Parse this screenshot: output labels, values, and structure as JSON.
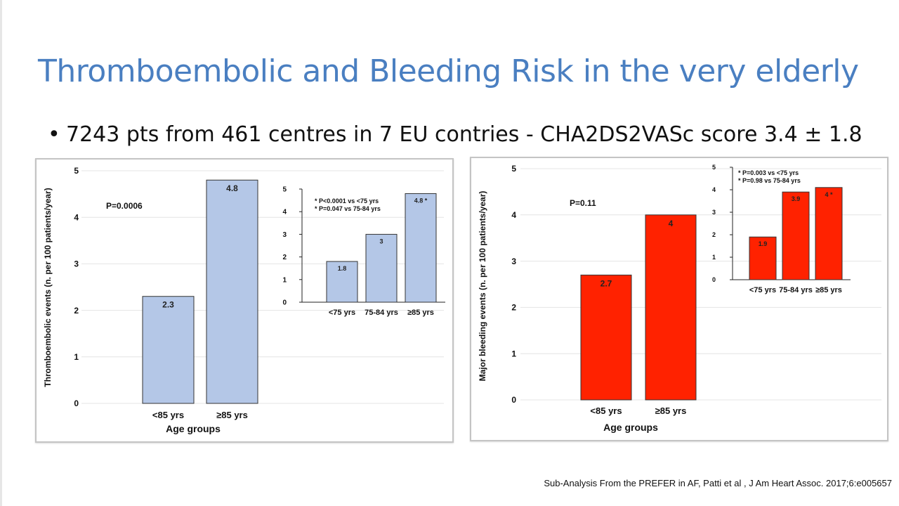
{
  "slide": {
    "title": "Thromboembolic and Bleeding Risk in the very elderly",
    "bullet": "7243 pts from 461 centres in 7 EU contries - CHA2DS2VASc score 3.4 ± 1.8",
    "citation": "Sub-Analysis From the PREFER in AF, Patti et al , J Am Heart Assoc. 2017;6:e005657"
  },
  "colors": {
    "title": "#4a7fc1",
    "blue_bar": "#b4c7e7",
    "red_bar": "#ff2200"
  },
  "chart_data": [
    {
      "type": "bar",
      "categories": [
        "<85 yrs",
        "≥85 yrs"
      ],
      "values": [
        2.3,
        4.8
      ],
      "data_labels": [
        "2.3",
        "4.8"
      ],
      "xlabel": "Age groups",
      "ylabel": "Thromboembolic events (n. per 100 patients/year)",
      "ylim": [
        0,
        5
      ],
      "yticks": [
        "0",
        "1",
        "2",
        "3",
        "4",
        "5"
      ],
      "annotation": "P=0.0006",
      "color": "#b4c7e7"
    },
    {
      "type": "bar",
      "categories": [
        "<75 yrs",
        "75-84 yrs",
        "≥85 yrs"
      ],
      "values": [
        1.8,
        3,
        4.8
      ],
      "data_labels": [
        "1.8",
        "3",
        "4.8 *"
      ],
      "ylim": [
        0,
        5
      ],
      "yticks": [
        "0",
        "1",
        "2",
        "3",
        "4",
        "5"
      ],
      "annotations": [
        "* P<0.0001 vs <75 yrs",
        "* P=0.047 vs 75-84 yrs"
      ],
      "color": "#b4c7e7"
    },
    {
      "type": "bar",
      "categories": [
        "<85 yrs",
        "≥85 yrs"
      ],
      "values": [
        2.7,
        4
      ],
      "data_labels": [
        "2.7",
        "4"
      ],
      "xlabel": "Age groups",
      "ylabel": "Major bleeding events  (n. per 100 patients/year)",
      "ylim": [
        0,
        5
      ],
      "yticks": [
        "0",
        "1",
        "2",
        "3",
        "4",
        "5"
      ],
      "annotation": "P=0.11",
      "color": "#ff2200"
    },
    {
      "type": "bar",
      "categories": [
        "<75 yrs",
        "75-84 yrs",
        "≥85 yrs"
      ],
      "values": [
        1.9,
        3.9,
        4.1
      ],
      "data_labels": [
        "1.9",
        "3.9",
        "4 *"
      ],
      "ylim": [
        0,
        5
      ],
      "yticks": [
        "0",
        "1",
        "2",
        "3",
        "4",
        "5"
      ],
      "annotations": [
        "* P=0.003 vs <75 yrs",
        "* P=0.98 vs 75-84 yrs"
      ],
      "color": "#ff2200"
    }
  ]
}
